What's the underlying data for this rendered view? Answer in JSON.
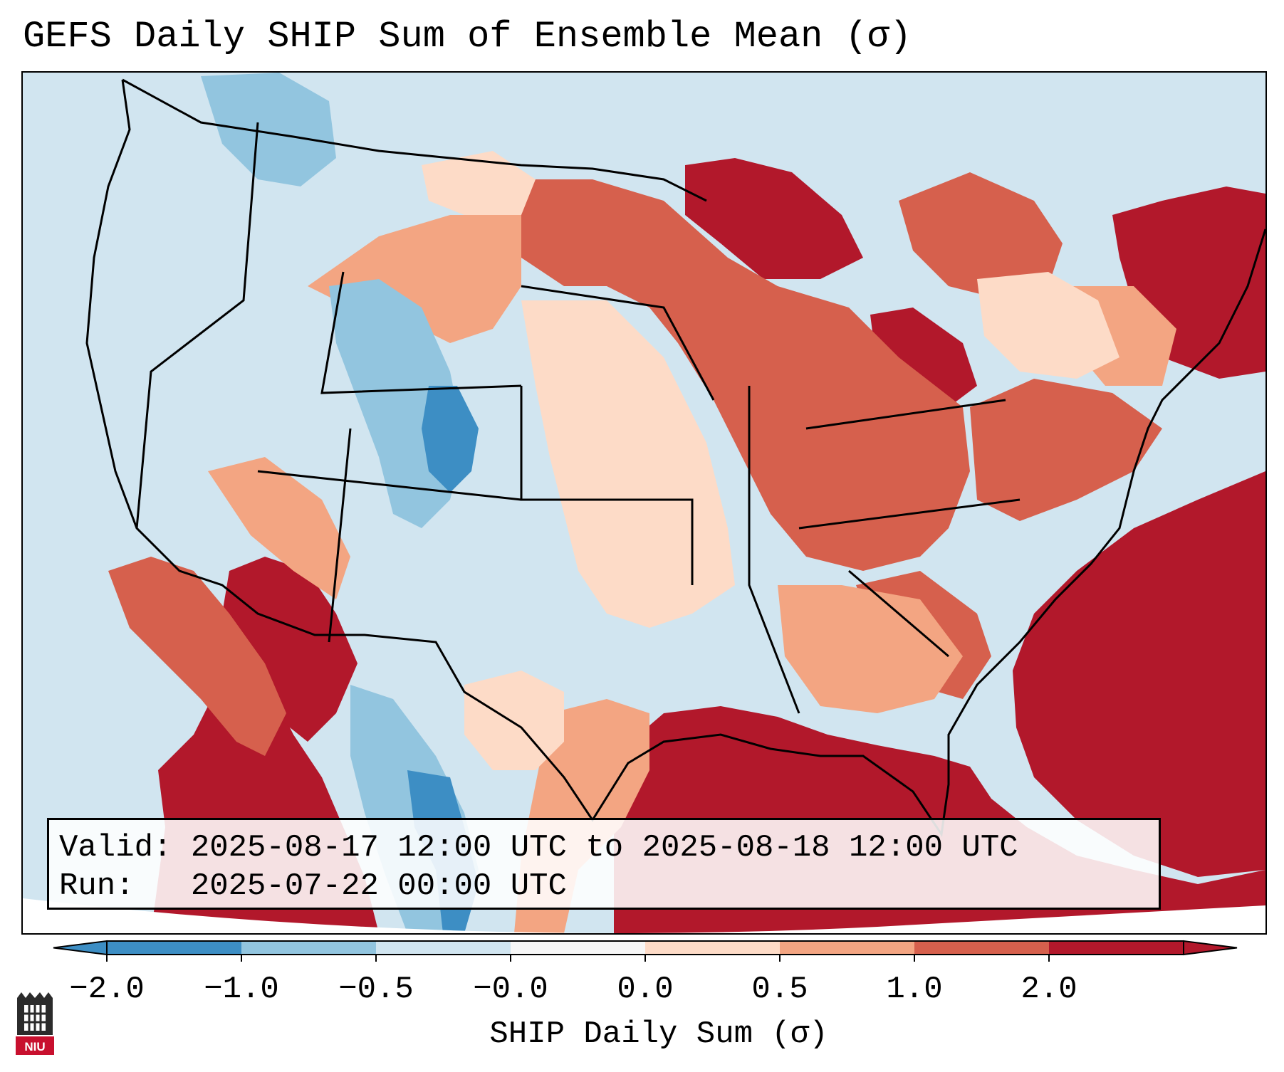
{
  "title": "GEFS Daily SHIP Sum of Ensemble Mean (σ)",
  "info": {
    "valid_label": "Valid:",
    "valid_value": "2025-08-17 12:00 UTC to 2025-08-18 12:00 UTC",
    "run_label": "Run:",
    "run_value": "2025-07-22 00:00 UTC"
  },
  "colorbar": {
    "title": "SHIP Daily Sum (σ)",
    "tick_labels": [
      "−2.0",
      "−1.0",
      "−0.5",
      "−0.0",
      "0.0",
      "0.5",
      "1.0",
      "2.0"
    ],
    "colors": [
      "#3d8ec4",
      "#92c5df",
      "#d1e5f0",
      "#f7f7f7",
      "#fddbc7",
      "#f3a582",
      "#d6604d",
      "#b2182b"
    ]
  },
  "map": {
    "region": "Contiguous United States",
    "colors": {
      "ocean_pacific": "#d1e5f0",
      "strong_neg": "#3d8ec4",
      "mod_neg": "#92c5df",
      "weak_neg": "#d1e5f0",
      "weak_pos": "#fddbc7",
      "mod_pos": "#f3a582",
      "strong_pos": "#d6604d",
      "extreme_pos": "#b2182b"
    }
  },
  "logo": {
    "text": "NIU"
  }
}
